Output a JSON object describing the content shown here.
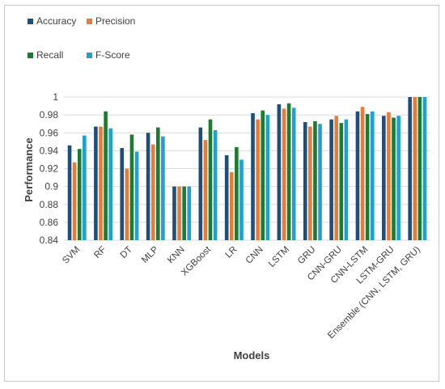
{
  "chart_data": {
    "type": "bar",
    "title": "",
    "xlabel": "Models",
    "ylabel": "Performance",
    "ylim": [
      0.84,
      1.0
    ],
    "yticks": [
      0.84,
      0.86,
      0.88,
      0.9,
      0.92,
      0.94,
      0.96,
      0.98,
      1
    ],
    "ytick_labels": [
      "0.84",
      "0.86",
      "0.88",
      "0.9",
      "0.92",
      "0.94",
      "0.96",
      "0.98",
      "1"
    ],
    "grid": true,
    "legend_position": "top-left",
    "categories": [
      "SVM",
      "RF",
      "DT",
      "MLP",
      "KNN",
      "XGBoost",
      "LR",
      "CNN",
      "LSTM",
      "GRU",
      "CNN-GRU",
      "CNN-LSTM",
      "LSTM-GRU",
      "Ensemble (CNN, LSTM, GRU)"
    ],
    "series": [
      {
        "name": "Accuracy",
        "color": "#1f4e79",
        "values": [
          0.946,
          0.967,
          0.943,
          0.96,
          0.9,
          0.966,
          0.935,
          0.982,
          0.992,
          0.972,
          0.975,
          0.984,
          0.979,
          1.0
        ]
      },
      {
        "name": "Precision",
        "color": "#e87a3a",
        "values": [
          0.927,
          0.967,
          0.92,
          0.947,
          0.9,
          0.952,
          0.916,
          0.975,
          0.987,
          0.967,
          0.979,
          0.989,
          0.983,
          1.0
        ]
      },
      {
        "name": "Recall",
        "color": "#1e7a2e",
        "values": [
          0.942,
          0.984,
          0.958,
          0.966,
          0.9,
          0.975,
          0.944,
          0.985,
          0.993,
          0.973,
          0.971,
          0.981,
          0.977,
          1.0
        ]
      },
      {
        "name": "F-Score",
        "color": "#1ea0d2",
        "values": [
          0.957,
          0.965,
          0.939,
          0.956,
          0.9,
          0.963,
          0.93,
          0.98,
          0.988,
          0.97,
          0.975,
          0.984,
          0.979,
          1.0
        ]
      }
    ]
  }
}
